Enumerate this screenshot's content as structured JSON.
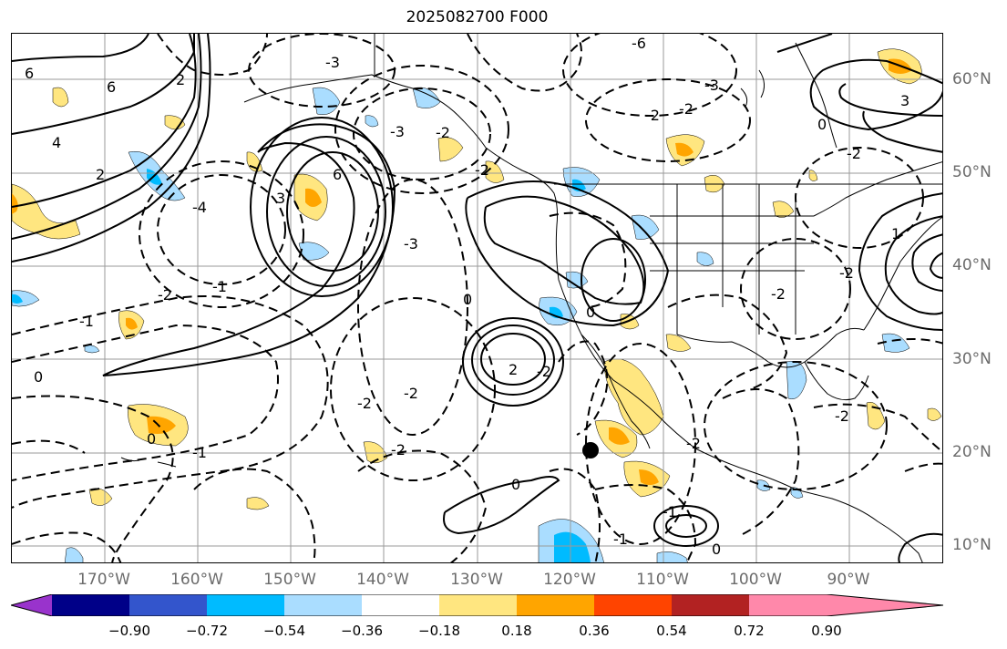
{
  "title": "2025082700 F000",
  "latitude_labels": [
    "60°N",
    "50°N",
    "40°N",
    "30°N",
    "20°N",
    "10°N"
  ],
  "longitude_labels": [
    "170°W",
    "160°W",
    "150°W",
    "140°W",
    "130°W",
    "120°W",
    "110°W",
    "100°W",
    "90°W"
  ],
  "colorbar": {
    "colors": [
      "#9933cc",
      "#000088",
      "#3355cc",
      "#00bbff",
      "#aaddff",
      "#ffffff",
      "#ffe680",
      "#ffa500",
      "#ff4400",
      "#b22222",
      "#ff88aa"
    ],
    "ticks": [
      "−0.90",
      "−0.72",
      "−0.54",
      "−0.36",
      "−0.18",
      "0.18",
      "0.36",
      "0.54",
      "0.72",
      "0.90"
    ]
  },
  "contour_labels": [
    "6",
    "6",
    "2",
    "4",
    "2",
    "-3",
    "-3",
    "6",
    "3",
    "-4",
    "-2",
    "-3",
    "-2",
    "-1",
    "0",
    "-2",
    "-1",
    "-2",
    "-2",
    "-2",
    "0",
    "2",
    "-2",
    "0",
    "-6",
    "-3",
    "-2",
    "-2",
    "3",
    "0",
    "-2",
    "-2",
    "-1",
    "0",
    "-2",
    "1",
    "-2",
    "-1",
    "-2",
    "0",
    "-1",
    "0"
  ],
  "marker": "storm-center"
}
